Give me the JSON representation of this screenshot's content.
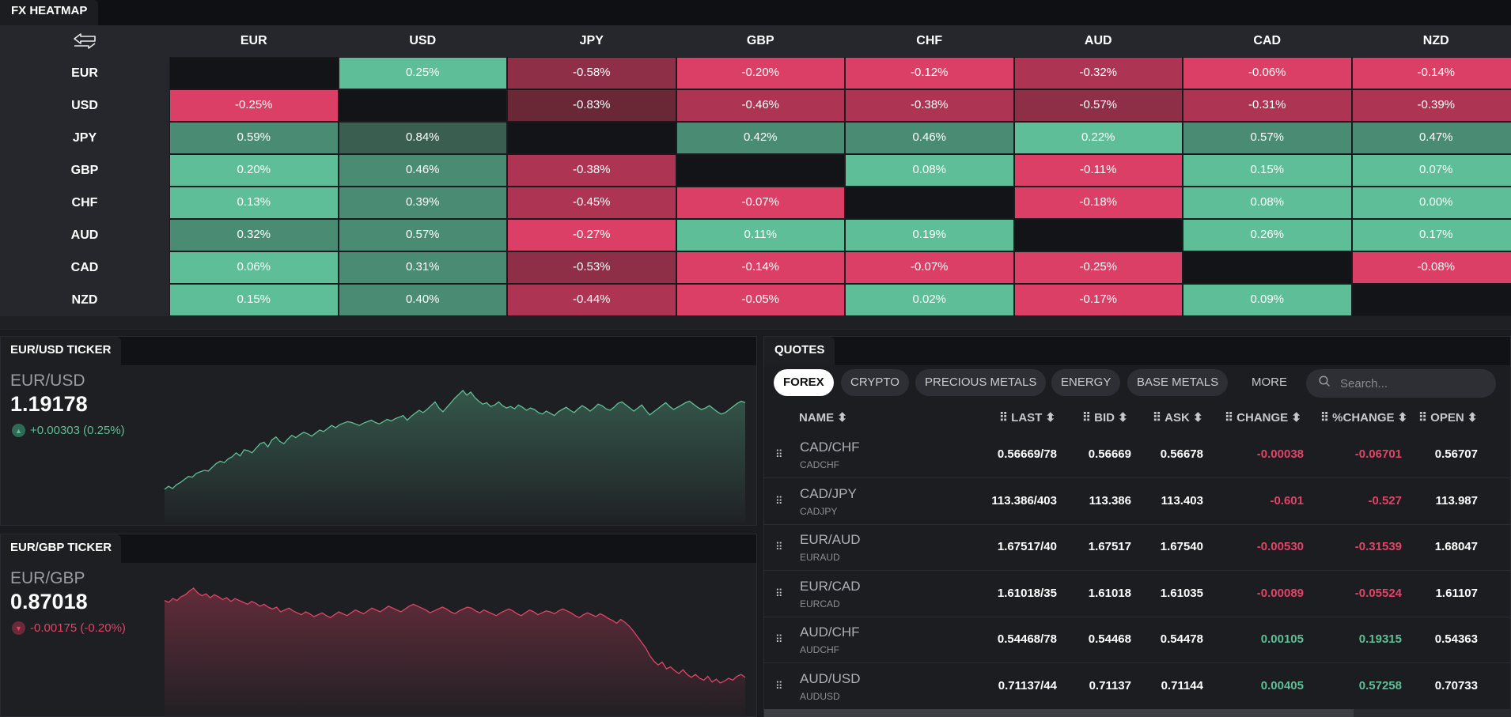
{
  "heatmap": {
    "title": "FX HEATMAP",
    "currencies": [
      "EUR",
      "USD",
      "JPY",
      "GBP",
      "CHF",
      "AUD",
      "CAD",
      "NZD"
    ],
    "values": [
      [
        null,
        "0.25%",
        "-0.58%",
        "-0.20%",
        "-0.12%",
        "-0.32%",
        "-0.06%",
        "-0.14%"
      ],
      [
        "-0.25%",
        null,
        "-0.83%",
        "-0.46%",
        "-0.38%",
        "-0.57%",
        "-0.31%",
        "-0.39%"
      ],
      [
        "0.59%",
        "0.84%",
        null,
        "0.42%",
        "0.46%",
        "0.22%",
        "0.57%",
        "0.47%"
      ],
      [
        "0.20%",
        "0.46%",
        "-0.38%",
        null,
        "0.08%",
        "-0.11%",
        "0.15%",
        "0.07%"
      ],
      [
        "0.13%",
        "0.39%",
        "-0.45%",
        "-0.07%",
        null,
        "-0.18%",
        "0.08%",
        "0.00%"
      ],
      [
        "0.32%",
        "0.57%",
        "-0.27%",
        "0.11%",
        "0.19%",
        null,
        "0.26%",
        "0.17%"
      ],
      [
        "0.06%",
        "0.31%",
        "-0.53%",
        "-0.14%",
        "-0.07%",
        "-0.25%",
        null,
        "-0.08%"
      ],
      [
        "0.15%",
        "0.40%",
        "-0.44%",
        "-0.05%",
        "0.02%",
        "-0.17%",
        "0.09%",
        null
      ]
    ]
  },
  "tickers": [
    {
      "tab": "EUR/USD TICKER",
      "pair": "EUR/USD",
      "price": "1.19178",
      "change": "+0.00303 (0.25%)",
      "direction": "up",
      "color": "#5fbf95",
      "series": [
        10,
        14,
        11,
        16,
        19,
        23,
        27,
        26,
        31,
        33,
        35,
        34,
        39,
        44,
        47,
        45,
        50,
        53,
        58,
        54,
        62,
        61,
        58,
        64,
        70,
        72,
        66,
        75,
        79,
        73,
        70,
        76,
        81,
        78,
        82,
        85,
        83,
        80,
        84,
        88,
        86,
        90,
        94,
        91,
        95,
        97,
        99,
        98,
        96,
        94,
        97,
        99,
        101,
        98,
        96,
        99,
        102,
        100,
        103,
        105,
        107,
        101,
        106,
        110,
        114,
        111,
        115,
        120,
        125,
        117,
        112,
        118,
        124,
        130,
        135,
        140,
        134,
        138,
        131,
        126,
        122,
        124,
        119,
        121,
        125,
        120,
        117,
        119,
        116,
        121,
        118,
        114,
        117,
        115,
        111,
        109,
        113,
        110,
        107,
        112,
        115,
        118,
        114,
        111,
        116,
        120,
        117,
        113,
        117,
        122,
        120,
        116,
        114,
        118,
        123,
        125,
        121,
        117,
        113,
        117,
        121,
        114,
        108,
        112,
        116,
        120,
        124,
        119,
        115,
        118,
        121,
        124,
        126,
        122,
        118,
        115,
        117,
        120,
        116,
        112,
        109,
        111,
        115,
        119,
        123,
        126,
        124
      ]
    },
    {
      "tab": "EUR/GBP TICKER",
      "pair": "EUR/GBP",
      "price": "0.87018",
      "change": "-0.00175 (-0.20%)",
      "direction": "down",
      "color": "#e04466",
      "series": [
        112,
        110,
        114,
        112,
        116,
        118,
        122,
        125,
        120,
        117,
        119,
        115,
        118,
        116,
        113,
        115,
        111,
        114,
        112,
        110,
        108,
        111,
        109,
        106,
        108,
        105,
        103,
        105,
        100,
        102,
        104,
        101,
        99,
        97,
        100,
        98,
        95,
        97,
        99,
        96,
        94,
        97,
        100,
        98,
        96,
        99,
        102,
        100,
        98,
        101,
        104,
        102,
        100,
        103,
        106,
        104,
        102,
        100,
        103,
        106,
        108,
        106,
        104,
        102,
        99,
        101,
        103,
        105,
        103,
        100,
        98,
        101,
        103,
        105,
        104,
        101,
        99,
        102,
        100,
        98,
        96,
        99,
        101,
        103,
        101,
        98,
        96,
        99,
        102,
        100,
        97,
        99,
        101,
        100,
        98,
        101,
        103,
        101,
        99,
        96,
        94,
        97,
        99,
        97,
        95,
        98,
        96,
        93,
        91,
        88,
        92,
        89,
        85,
        80,
        74,
        68,
        62,
        54,
        48,
        44,
        47,
        40,
        42,
        38,
        35,
        39,
        34,
        31,
        34,
        30,
        28,
        32,
        26,
        29,
        25,
        27,
        30,
        28,
        32,
        34,
        31
      ]
    }
  ],
  "quotes": {
    "title": "QUOTES",
    "filters": [
      "FOREX",
      "CRYPTO",
      "PRECIOUS METALS",
      "ENERGY",
      "BASE METALS"
    ],
    "more_label": "MORE",
    "search_placeholder": "Search...",
    "columns": [
      "NAME",
      "LAST",
      "BID",
      "ASK",
      "CHANGE",
      "%CHANGE",
      "OPEN"
    ],
    "rows": [
      {
        "name": "CAD/CHF",
        "symbol": "CADCHF",
        "last": "0.56669/78",
        "bid": "0.56669",
        "ask": "0.56678",
        "change": "-0.00038",
        "pct": "-0.06701",
        "open": "0.56707",
        "dir": "neg"
      },
      {
        "name": "CAD/JPY",
        "symbol": "CADJPY",
        "last": "113.386/403",
        "bid": "113.386",
        "ask": "113.403",
        "change": "-0.601",
        "pct": "-0.527",
        "open": "113.987",
        "dir": "neg"
      },
      {
        "name": "EUR/AUD",
        "symbol": "EURAUD",
        "last": "1.67517/40",
        "bid": "1.67517",
        "ask": "1.67540",
        "change": "-0.00530",
        "pct": "-0.31539",
        "open": "1.68047",
        "dir": "neg"
      },
      {
        "name": "EUR/CAD",
        "symbol": "EURCAD",
        "last": "1.61018/35",
        "bid": "1.61018",
        "ask": "1.61035",
        "change": "-0.00089",
        "pct": "-0.05524",
        "open": "1.61107",
        "dir": "neg"
      },
      {
        "name": "AUD/CHF",
        "symbol": "AUDCHF",
        "last": "0.54468/78",
        "bid": "0.54468",
        "ask": "0.54478",
        "change": "0.00105",
        "pct": "0.19315",
        "open": "0.54363",
        "dir": "pos"
      },
      {
        "name": "AUD/USD",
        "symbol": "AUDUSD",
        "last": "0.71137/44",
        "bid": "0.71137",
        "ask": "0.71144",
        "change": "0.00405",
        "pct": "0.57258",
        "open": "0.70733",
        "dir": "pos"
      }
    ]
  }
}
